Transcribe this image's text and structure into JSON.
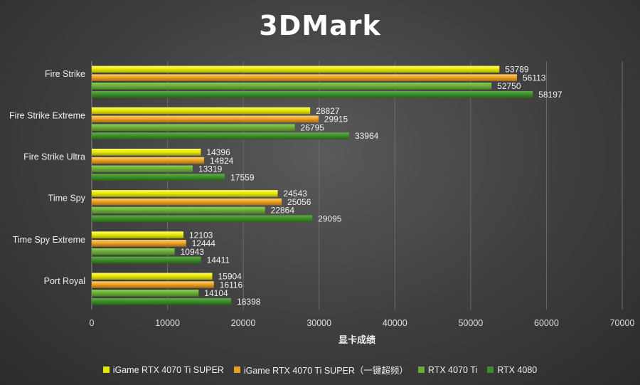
{
  "chart_data": {
    "type": "bar",
    "orientation": "horizontal",
    "title": "3DMark",
    "xlabel": "显卡成绩",
    "ylabel": "",
    "xlim": [
      0,
      70000
    ],
    "ticks": [
      "0",
      "10000",
      "20000",
      "30000",
      "40000",
      "50000",
      "60000",
      "70000"
    ],
    "grid": true,
    "legend_position": "bottom",
    "categories": [
      "Fire Strike",
      "Fire Strike Extreme",
      "Fire Strike Ultra",
      "Time Spy",
      "Time Spy Extreme",
      "Port Royal"
    ],
    "series": [
      {
        "name": "iGame RTX 4070 Ti SUPER",
        "color": "#e6e600",
        "values": [
          53789,
          28827,
          14396,
          24543,
          12103,
          15904
        ]
      },
      {
        "name": "iGame RTX 4070 Ti SUPER（一键超频）",
        "color": "#e8a020",
        "values": [
          56113,
          29915,
          14824,
          25056,
          12444,
          16116
        ]
      },
      {
        "name": "RTX 4070 Ti",
        "color": "#6aaa38",
        "values": [
          52750,
          26795,
          13319,
          22864,
          10943,
          14104
        ]
      },
      {
        "name": "RTX 4080",
        "color": "#3d8a2a",
        "values": [
          58197,
          33964,
          17559,
          29095,
          14411,
          18398
        ]
      }
    ]
  }
}
